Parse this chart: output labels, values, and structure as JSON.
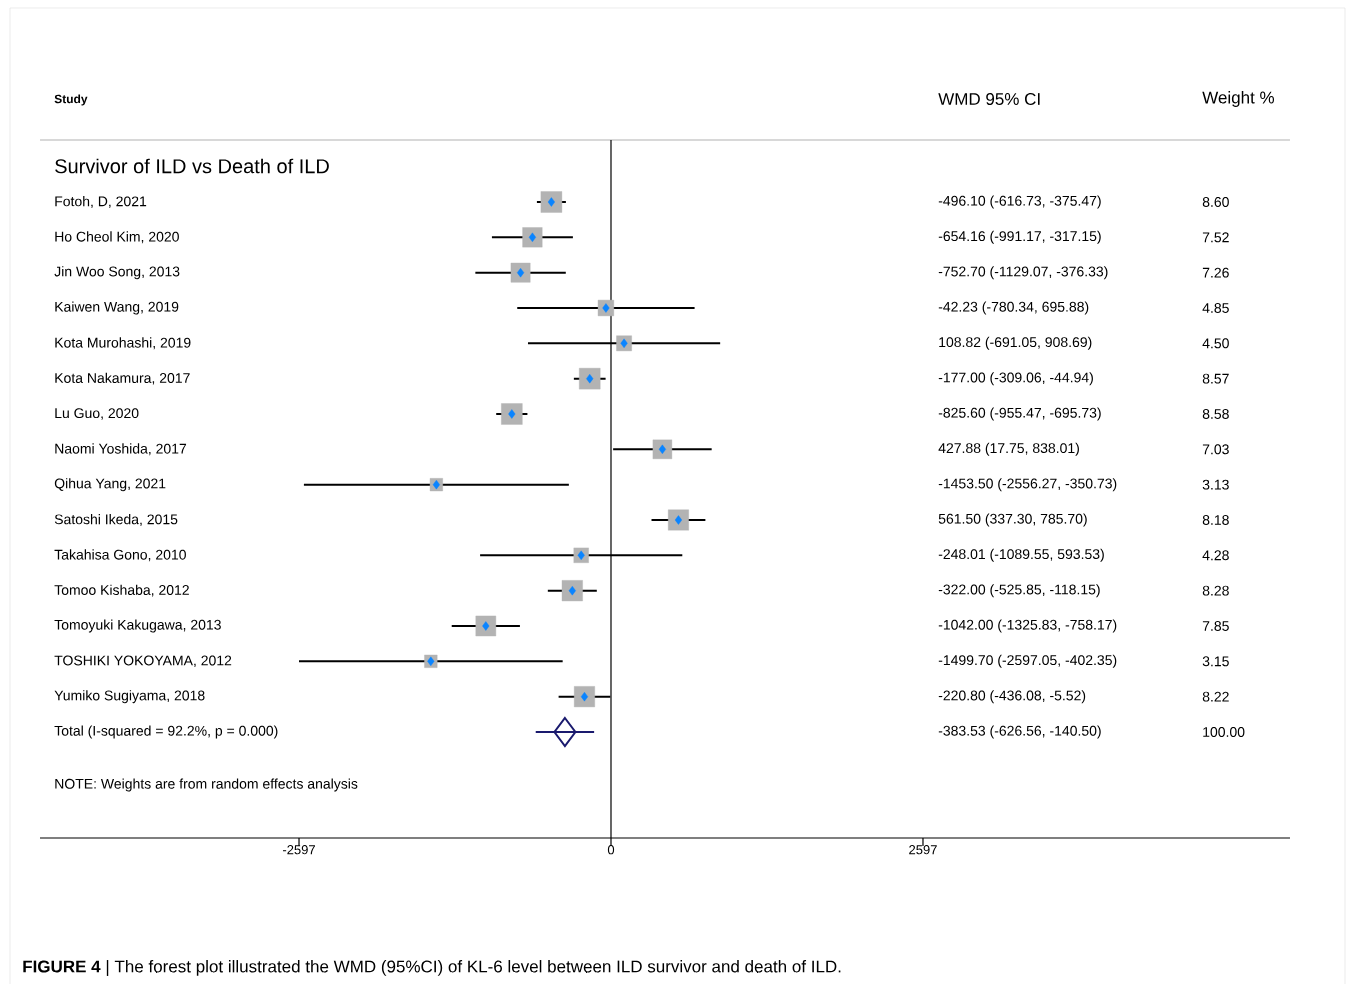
{
  "chart_data": {
    "type": "scatter",
    "orientation": "horizontal",
    "subtitle": "Survivor of ILD vs Death of ILD",
    "categories": [
      "Fotoh, D, 2021",
      "Ho Cheol Kim, 2020",
      "Jin Woo Song, 2013",
      "Kaiwen Wang, 2019",
      "Kota Murohashi, 2019",
      "Kota Nakamura, 2017",
      "Lu Guo, 2020",
      "Naomi Yoshida, 2017",
      "Qihua Yang, 2021",
      "Satoshi Ikeda, 2015",
      "Takahisa Gono, 2010",
      "Tomoo Kishaba, 2012",
      "Tomoyuki Kakugawa, 2013",
      "TOSHIKI YOKOYAMA, 2012",
      "Yumiko Sugiyama, 2018",
      "Total (I-squared = 92.2%, p = 0.000)"
    ],
    "series": [
      {
        "type": "bubble",
        "marker": "square",
        "color": "#b3b3b3",
        "values": [
          -496.1,
          -654.16,
          -752.7,
          -42.23,
          108.82,
          -177.0,
          -825.6,
          427.88,
          -1453.5,
          561.5,
          -248.01,
          -322.0,
          -1042.0,
          -1499.7,
          -220.8,
          null
        ],
        "errors": [
          [
            -616.73,
            -375.47
          ],
          [
            -991.17,
            -317.15
          ],
          [
            -1129.07,
            -376.33
          ],
          [
            -780.34,
            695.88
          ],
          [
            -691.05,
            908.69
          ],
          [
            -309.06,
            -44.94
          ],
          [
            -955.47,
            -695.73
          ],
          [
            17.75,
            838.01
          ],
          [
            -2556.27,
            -350.73
          ],
          [
            337.3,
            785.7
          ],
          [
            -1089.55,
            593.53
          ],
          [
            -525.85,
            -118.15
          ],
          [
            -1325.83,
            -758.17
          ],
          [
            -2597.05,
            -402.35
          ],
          [
            -436.08,
            -5.52
          ],
          null
        ],
        "sizes": [
          1,
          0.874,
          0.844,
          0.564,
          0.523,
          0.997,
          0.998,
          0.817,
          0.364,
          0.951,
          0.498,
          0.963,
          0.913,
          0.366,
          0.956,
          null
        ]
      },
      {
        "type": "scatter",
        "marker": "diamond",
        "color": "#0a84ff",
        "values": [
          -496.1,
          -654.16,
          -752.7,
          -42.23,
          108.82,
          -177.0,
          -825.6,
          427.88,
          -1453.5,
          561.5,
          -248.01,
          -322.0,
          -1042.0,
          -1499.7,
          -220.8,
          null
        ]
      },
      {
        "type": "scatter",
        "marker": "diamond",
        "color": "#1a1a6e",
        "values": [
          null,
          null,
          null,
          null,
          null,
          null,
          null,
          null,
          null,
          null,
          null,
          null,
          null,
          null,
          null,
          -383.53
        ],
        "errors": [
          null,
          null,
          null,
          null,
          null,
          null,
          null,
          null,
          null,
          null,
          null,
          null,
          null,
          null,
          null,
          [
            -626.56,
            -140.5
          ]
        ]
      }
    ],
    "xlim": [
      -4753,
      5652
    ],
    "xticks": [
      -2597,
      0,
      2597
    ],
    "ref_lines": [
      {
        "axis": "x",
        "value": 0,
        "color": "#000000"
      }
    ],
    "annotations": [
      "Study",
      "WMD 95% CI",
      "Weight   %",
      "NOTE: Weights are from random effects analysis",
      "**FIGURE 4** | The forest plot illustrated the WMD (95%CI) of KL-6 level between ILD survivor and death of ILD.",
      "-496.10 (-616.73, -375.47)",
      "8.60",
      "-654.16 (-991.17, -317.15)",
      "7.52",
      "-752.70 (-1129.07, -376.33)",
      "7.26",
      "-42.23 (-780.34, 695.88)",
      "4.85",
      "108.82 (-691.05, 908.69)",
      "4.50",
      "-177.00 (-309.06, -44.94)",
      "8.57",
      "-825.60 (-955.47, -695.73)",
      "8.58",
      "427.88 (17.75, 838.01)",
      "7.03",
      "-1453.50 (-2556.27, -350.73)",
      "3.13",
      "561.50 (337.30, 785.70)",
      "8.18",
      "-248.01 (-1089.55, 593.53)",
      "4.28",
      "-322.00 (-525.85, -118.15)",
      "8.28",
      "-1042.00 (-1325.83, -758.17)",
      "7.85",
      "-1499.70 (-2597.05, -402.35)",
      "3.15",
      "-220.80 (-436.08, -5.52)",
      "8.22",
      "-383.53 (-626.56, -140.50)",
      "100.00"
    ]
  }
}
